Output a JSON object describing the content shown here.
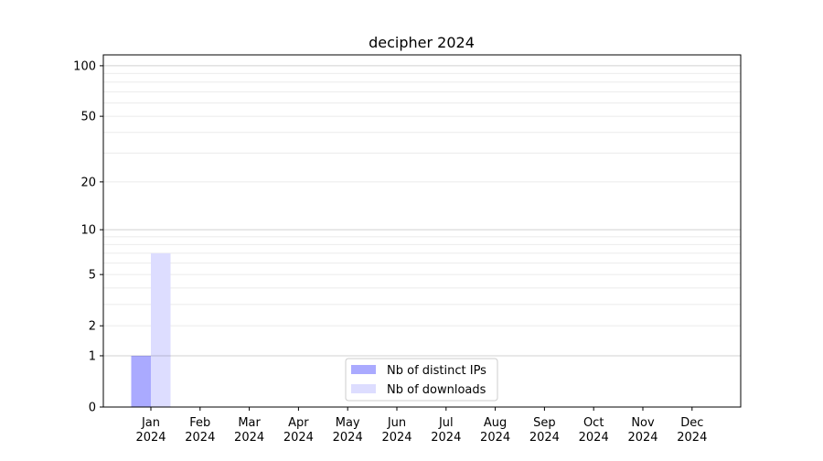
{
  "chart_data": {
    "type": "bar",
    "title": "decipher 2024",
    "xlabel": "",
    "ylabel": "",
    "yscale": "log(1+y)",
    "ylim": [
      0,
      116
    ],
    "yticks": [
      0,
      1,
      2,
      5,
      10,
      20,
      50,
      100
    ],
    "grid": true,
    "legend_placement": "lower-center",
    "categories": [
      "Jan\n2024",
      "Feb\n2024",
      "Mar\n2024",
      "Apr\n2024",
      "May\n2024",
      "Jun\n2024",
      "Jul\n2024",
      "Aug\n2024",
      "Sep\n2024",
      "Oct\n2024",
      "Nov\n2024",
      "Dec\n2024"
    ],
    "series": [
      {
        "name": "Nb of distinct IPs",
        "color": "#aaaaff",
        "values": [
          1,
          0,
          0,
          0,
          0,
          0,
          0,
          0,
          0,
          0,
          0,
          0
        ]
      },
      {
        "name": "Nb of downloads",
        "color": "#ddddff",
        "values": [
          7,
          0,
          0,
          0,
          0,
          0,
          0,
          0,
          0,
          0,
          0,
          0
        ]
      }
    ]
  }
}
